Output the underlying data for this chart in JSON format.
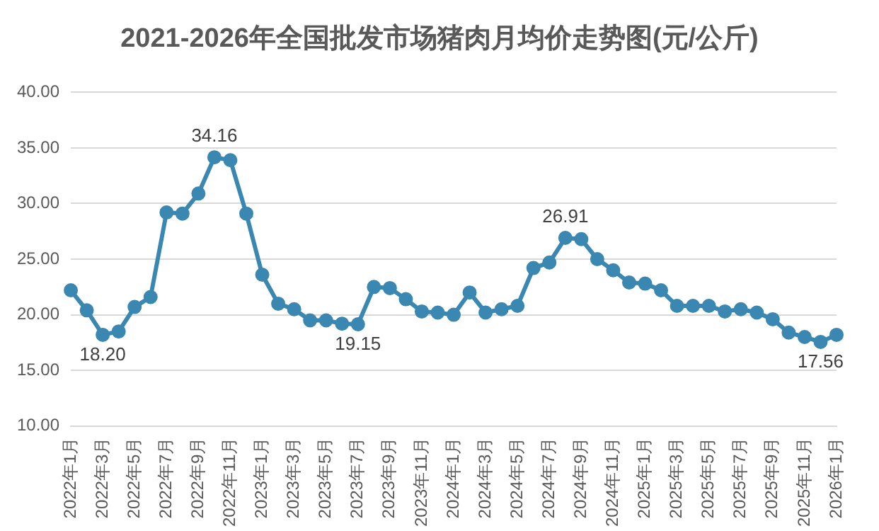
{
  "chart_data": {
    "type": "line",
    "title": "2021-2026年全国批发市场猪肉月均价走势图(元/公斤)",
    "categories": [
      "2022年1月",
      null,
      "2022年3月",
      null,
      "2022年5月",
      null,
      "2022年7月",
      null,
      "2022年9月",
      null,
      "2022年11月",
      null,
      "2023年1月",
      null,
      "2023年3月",
      null,
      "2023年5月",
      null,
      "2023年7月",
      null,
      "2023年9月",
      null,
      "2023年11月",
      null,
      "2024年1月",
      null,
      "2024年3月",
      null,
      "2024年5月",
      null,
      "2024年7月",
      null,
      "2024年9月",
      null,
      "2024年11月",
      null,
      "2025年1月",
      null,
      "2025年3月",
      null,
      "2025年5月",
      null,
      "2025年7月",
      null,
      "2025年9月",
      null,
      "2025年11月",
      null,
      "2026年1月"
    ],
    "series": [
      {
        "color": "#3a87b2",
        "values": [
          22.2,
          20.4,
          18.2,
          18.5,
          20.7,
          21.6,
          29.2,
          29.1,
          30.9,
          34.16,
          33.9,
          29.1,
          23.6,
          21.0,
          20.5,
          19.5,
          19.5,
          19.2,
          19.15,
          22.5,
          22.4,
          21.4,
          20.3,
          20.2,
          20.0,
          22.0,
          20.2,
          20.5,
          20.8,
          24.2,
          24.7,
          26.91,
          26.8,
          25.0,
          24.0,
          22.9,
          22.8,
          22.2,
          20.8,
          20.8,
          20.8,
          20.3,
          20.5,
          20.2,
          19.6,
          18.4,
          18.0,
          17.56,
          18.2
        ],
        "value_labels": [
          null,
          null,
          "18.20",
          null,
          null,
          null,
          null,
          null,
          null,
          "34.16",
          null,
          null,
          null,
          null,
          null,
          null,
          null,
          null,
          "19.15",
          null,
          null,
          null,
          null,
          null,
          null,
          null,
          null,
          null,
          null,
          null,
          null,
          "26.91",
          null,
          null,
          null,
          null,
          null,
          null,
          null,
          null,
          null,
          null,
          null,
          null,
          null,
          null,
          null,
          "17.56",
          null
        ]
      }
    ],
    "ylim": [
      10,
      40
    ],
    "yticks": [
      {
        "value": 10,
        "label": "10.00"
      },
      {
        "value": 15,
        "label": "15.00"
      },
      {
        "value": 20,
        "label": "20.00"
      },
      {
        "value": 25,
        "label": "25.00"
      },
      {
        "value": 30,
        "label": "30.00"
      },
      {
        "value": 35,
        "label": "35.00"
      },
      {
        "value": 40,
        "label": "40.00"
      }
    ],
    "grid": "y",
    "legend": false,
    "marker": "circle",
    "line_style": "solid"
  }
}
